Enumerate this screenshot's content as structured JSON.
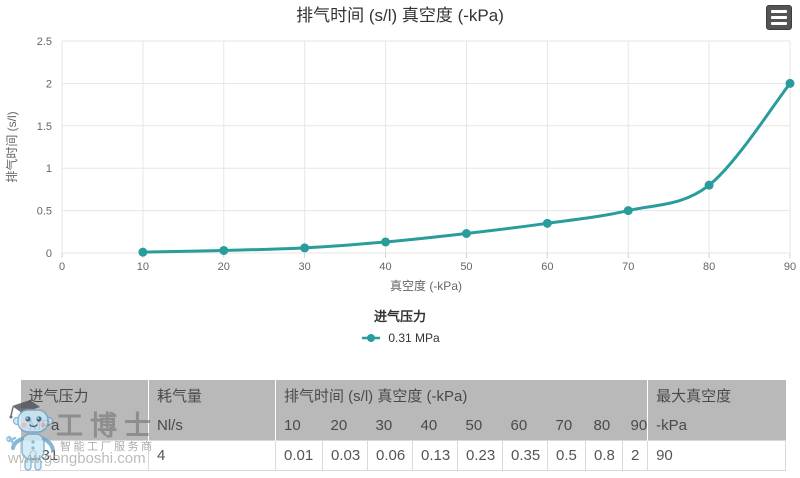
{
  "chart": {
    "title": "排气时间 (s/l) 真空度 (-kPa)",
    "legend": {
      "title": "进气压力",
      "items": [
        {
          "label": "0.31 MPa",
          "color": "#2a9d9b"
        }
      ]
    }
  },
  "chart_data": {
    "type": "line",
    "x": [
      10,
      20,
      30,
      40,
      50,
      60,
      70,
      80,
      90
    ],
    "series": [
      {
        "name": "0.31 MPa",
        "values": [
          0.01,
          0.03,
          0.06,
          0.13,
          0.23,
          0.35,
          0.5,
          0.8,
          2
        ]
      }
    ],
    "title": "排气时间 (s/l) 真空度 (-kPa)",
    "xlabel": "真空度 (-kPa)",
    "ylabel": "排气时间 (s/l)",
    "xlim": [
      0,
      90
    ],
    "ylim": [
      0,
      2.5
    ],
    "xticks": [
      0,
      10,
      20,
      30,
      40,
      50,
      60,
      70,
      80,
      90
    ],
    "yticks": [
      0,
      0.5,
      1,
      1.5,
      2,
      2.5
    ],
    "grid": true,
    "legend_position": "bottom",
    "line_color": "#2a9d9b",
    "gridline_color": "#e6e6e6",
    "tick_label_color": "#666666",
    "axis_title_color": "#666666"
  },
  "table": {
    "header_row1": [
      {
        "label": "进气压力",
        "span": 1
      },
      {
        "label": "耗气量",
        "span": 1
      },
      {
        "label": "排气时间 (s/l) 真空度 (-kPa)",
        "span": 9
      },
      {
        "label": "最大真空度",
        "span": 1
      }
    ],
    "header_row2": [
      "MPa",
      "Nl/s",
      "10",
      "20",
      "30",
      "40",
      "50",
      "60",
      "70",
      "80",
      "90",
      "-kPa"
    ],
    "rows": [
      [
        "0.31",
        "4",
        "0.01",
        "0.03",
        "0.06",
        "0.13",
        "0.23",
        "0.35",
        "0.5",
        "0.8",
        "2",
        "90"
      ]
    ]
  },
  "watermark": {
    "brand": "工博士",
    "tagline": "智能工厂服务商",
    "url": "www.gongboshi.com"
  }
}
